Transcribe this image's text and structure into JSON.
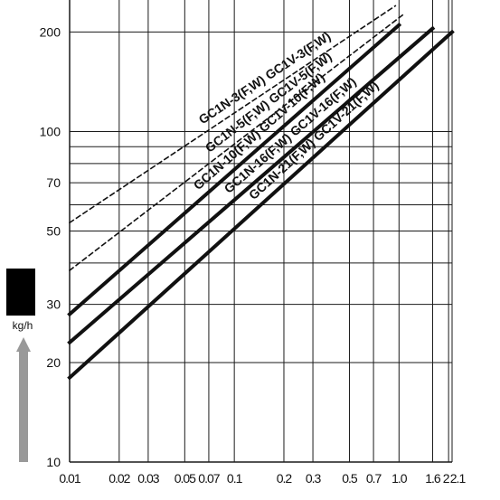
{
  "chart_data": {
    "type": "line",
    "x_scale": "log",
    "y_scale": "log",
    "xlim": [
      0.01,
      2.1
    ],
    "ylim": [
      10,
      250
    ],
    "grid": true,
    "ylabel": "kg/h",
    "x_ticks": [
      "0.01",
      "0.02",
      "0.03",
      "0.05",
      "0.07",
      "0.1",
      "0.2",
      "0.3",
      "0.5",
      "0.7",
      "1.0",
      "1.6",
      "2",
      "2.1"
    ],
    "x_tick_values": [
      0.01,
      0.02,
      0.03,
      0.05,
      0.07,
      0.1,
      0.2,
      0.3,
      0.5,
      0.7,
      1.0,
      1.6,
      2,
      2.1
    ],
    "y_ticks": [
      "10",
      "20",
      "30",
      "50",
      "70",
      "100",
      "200"
    ],
    "y_tick_values": [
      10,
      20,
      30,
      50,
      70,
      100,
      200
    ],
    "y_minor_values": [
      40,
      60,
      80,
      90
    ],
    "series": [
      {
        "name": "GC1N-3(F,W) GC1V-3(F,W)",
        "style": "dashed",
        "x": [
          0.01,
          0.95
        ],
        "y": [
          53,
          240
        ]
      },
      {
        "name": "GC1N-5(F,W) GC1V-5(F,W)",
        "style": "dashed",
        "x": [
          0.01,
          1.05
        ],
        "y": [
          38,
          225
        ]
      },
      {
        "name": "GC1N-10(F,W) GC1V-10(F,W)",
        "style": "solid",
        "x": [
          0.01,
          1.0
        ],
        "y": [
          28,
          210
        ]
      },
      {
        "name": "GC1N-16(F,W) GC1V-16(F,W)",
        "style": "solid",
        "x": [
          0.01,
          1.6
        ],
        "y": [
          23,
          205
        ]
      },
      {
        "name": "GC1N-21(F,W) GC1V-21(F,W)",
        "style": "solid",
        "x": [
          0.01,
          2.1
        ],
        "y": [
          18,
          200
        ]
      }
    ]
  },
  "colors": {
    "line": "#111111",
    "grid": "#1a1a1a",
    "unit_block": "#000000",
    "arrow": "#999999"
  }
}
